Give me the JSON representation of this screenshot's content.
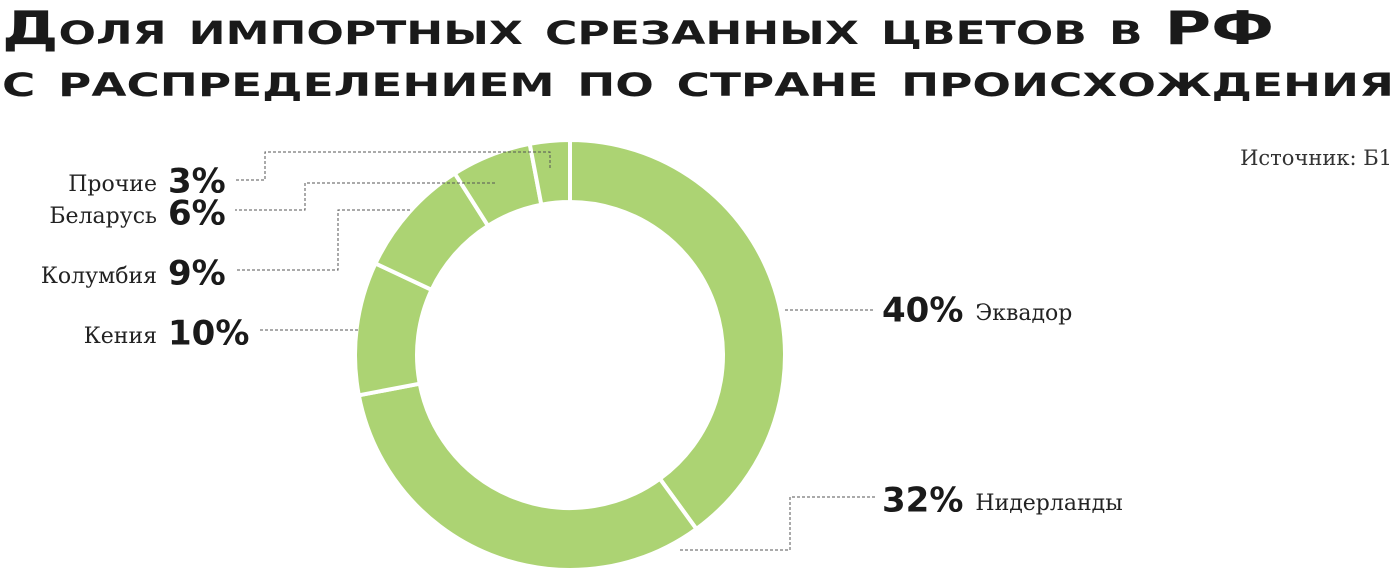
{
  "chart_data": {
    "type": "donut",
    "title": [
      "Доля импортных срезанных цветов в РФ",
      "с распределением по стране происхождения"
    ],
    "source": "Источник: Б1",
    "categories": [
      "Эквадор",
      "Нидерланды",
      "Кения",
      "Колумбия",
      "Беларусь",
      "Прочие"
    ],
    "values": [
      40,
      32,
      10,
      9,
      6,
      3
    ],
    "value_labels": [
      "40%",
      "32%",
      "10%",
      "9%",
      "6%",
      "3%"
    ],
    "color": "#acd373"
  }
}
